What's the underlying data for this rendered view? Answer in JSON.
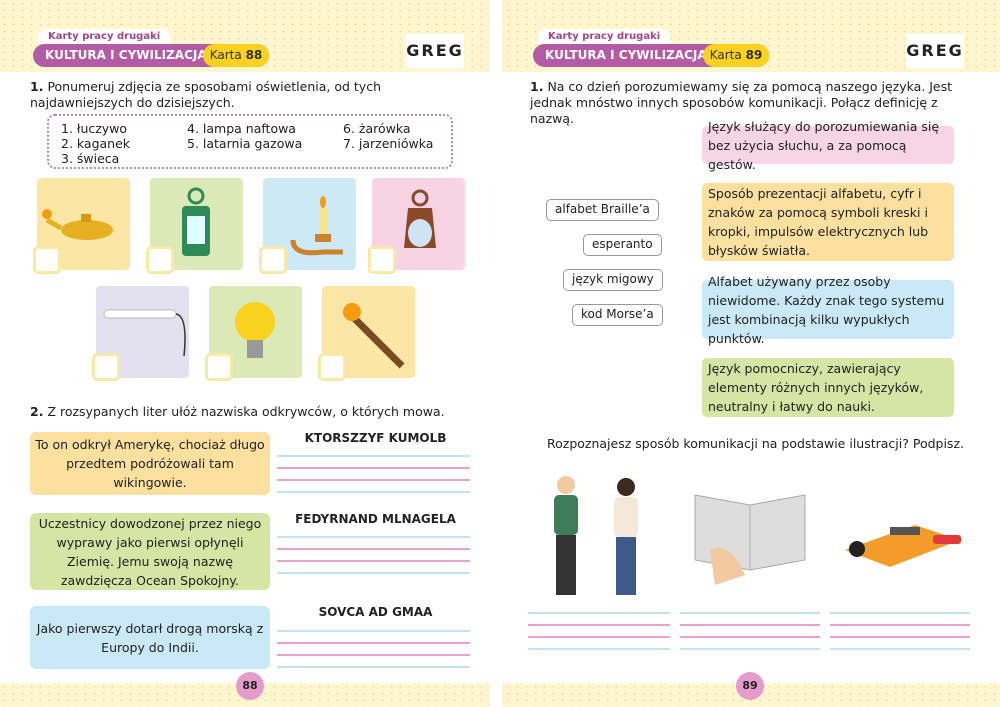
{
  "left": {
    "series": "Karty pracy drugaki",
    "section": "KULTURA I CYWILIZACJA",
    "karta_label": "Karta",
    "karta_no": "88",
    "logo": "GREG",
    "task1": {
      "num": "1.",
      "text": "Ponumeruj zdjęcia ze sposobami oświetlenia, od tych najdawniejszych do dzisiejszych.",
      "items": [
        "1. łuczywo",
        "2. kaganek",
        "3. świeca",
        "4. lampa naftowa",
        "5. latarnia gazowa",
        "6. żarówka",
        "7. jarzeniówka"
      ],
      "pictures": [
        "oil-lamp-icon",
        "lantern-icon",
        "candle-icon",
        "kerosene-lamp-icon",
        "fluorescent-tube-icon",
        "light-bulb-icon",
        "torch-icon"
      ]
    },
    "task2": {
      "num": "2.",
      "text": "Z rozsypanych liter ułóż nazwiska odkrywców, o których mowa.",
      "clues": [
        {
          "text": "To on odkrył Amerykę, chociaż długo przedtem podróżowali tam wikingowie.",
          "scrambled": "KTORSZZYF KUMOLB",
          "color": "#fbe0a0"
        },
        {
          "text": "Uczestnicy dowodzonej przez niego wyprawy jako pierwsi opłynęli Ziemię. Jemu swoją nazwę zawdzięcza Ocean Spokojny.",
          "scrambled": "FEDYRNAND MLNAGELA",
          "color": "#d5e5a3"
        },
        {
          "text": "Jako pierwszy dotarł drogą morską z Europy do Indii.",
          "scrambled": "SOVCA AD GMAA",
          "color": "#c9e8f8"
        }
      ]
    },
    "page": "88"
  },
  "right": {
    "series": "Karty pracy drugaki",
    "section": "KULTURA I CYWILIZACJA",
    "karta_label": "Karta",
    "karta_no": "89",
    "logo": "GREG",
    "task1": {
      "num": "1.",
      "text": "Na co dzień porozumiewamy się za pomocą naszego języka. Jest jednak mnóstwo innych sposobów komunikacji. Połącz definicję z nazwą.",
      "words": [
        "alfabet Braille’a",
        "esperanto",
        "język migowy",
        "kod Morse’a"
      ],
      "definitions": [
        {
          "text": "Język służący do porozumiewania się bez użycia słuchu, a za pomocą gestów.",
          "color": "#f8d5e6"
        },
        {
          "text": "Sposób prezentacji alfabetu, cyfr i znaków za pomocą symboli kreski i kropki, impulsów elektrycznych lub błysków światła.",
          "color": "#fbe0a0"
        },
        {
          "text": "Alfabet używany przez osoby niewidome. Każdy znak tego systemu jest kombinacją kilku wypukłych punktów.",
          "color": "#c9e8f8"
        },
        {
          "text": "Język pomocniczy, zawierający elementy różnych innych języków, neutralny i łatwy do nauki.",
          "color": "#d5e5a3"
        }
      ]
    },
    "question": "Rozpoznajesz sposób komunikacji na podstawie ilustracji? Podpisz.",
    "illustrations": [
      "sign-language-people-icon",
      "braille-book-icon",
      "telegraph-key-icon"
    ],
    "page": "89"
  }
}
